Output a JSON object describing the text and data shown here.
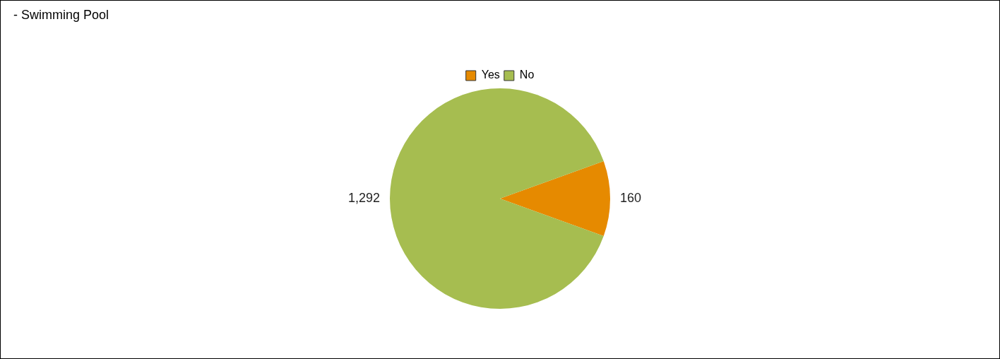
{
  "chart_data": {
    "type": "pie",
    "title": "- Swimming Pool",
    "categories": [
      "Yes",
      "No"
    ],
    "values": [
      160,
      1292
    ],
    "colors": [
      "#e68a00",
      "#a6bd50"
    ],
    "value_labels": [
      "160",
      "1,292"
    ],
    "legend": "top"
  }
}
